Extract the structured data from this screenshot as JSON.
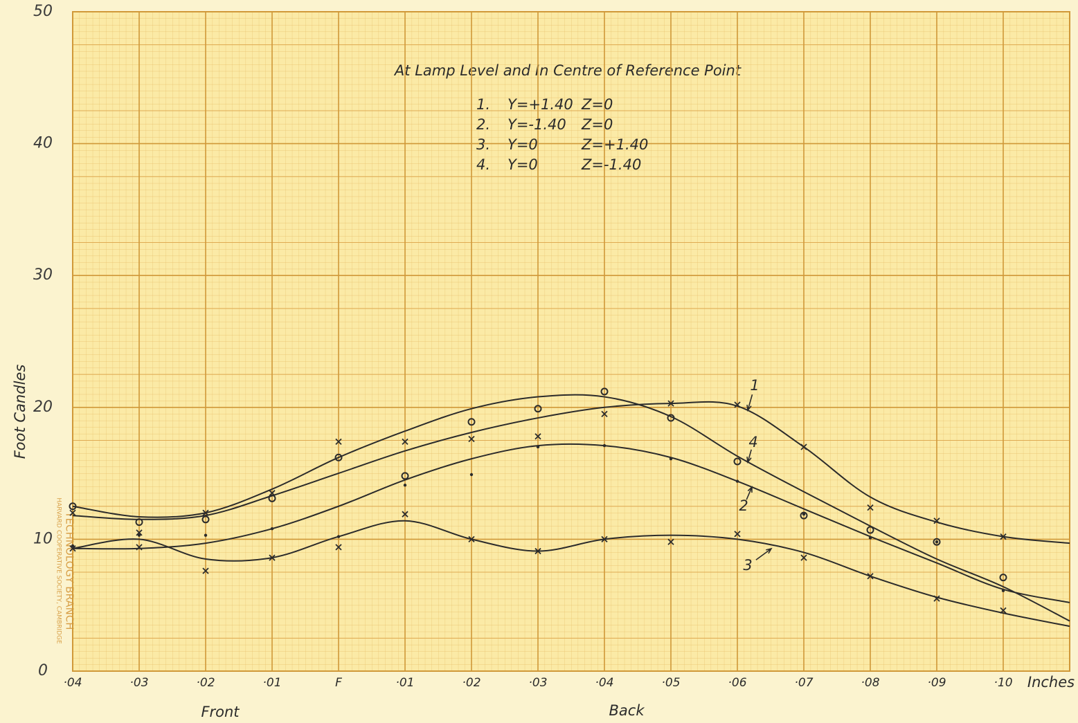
{
  "chart_data": {
    "type": "line",
    "title": "At Lamp Level and In Centre of Reference Point",
    "key": [
      [
        "1.",
        "Y=+1.40",
        "Z=0"
      ],
      [
        "2.",
        "Y=-1.40",
        "Z=0"
      ],
      [
        "3.",
        "Y=0",
        "Z=+1.40"
      ],
      [
        "4.",
        "Y=0",
        "Z=-1.40"
      ]
    ],
    "y_label": "Foot Candles",
    "x_label": "Inches",
    "x_side_labels": [
      "Front",
      "Back"
    ],
    "stamp": [
      "TECHNOLOGY BRANCH",
      "HARVARD COOPERATIVE SOCIETY, CAMBRIDGE"
    ],
    "x": [
      -0.04,
      -0.03,
      -0.02,
      -0.01,
      0,
      0.01,
      0.02,
      0.03,
      0.04,
      0.05,
      0.06,
      0.07,
      0.08,
      0.09,
      0.1,
      0.11
    ],
    "xlim": [
      -0.04,
      0.11
    ],
    "xticks": [
      {
        "value": -0.04,
        "label": "·04"
      },
      {
        "value": -0.03,
        "label": "·03"
      },
      {
        "value": -0.02,
        "label": "·02"
      },
      {
        "value": -0.01,
        "label": "·01"
      },
      {
        "value": 0,
        "label": "F"
      },
      {
        "value": 0.01,
        "label": "·01"
      },
      {
        "value": 0.02,
        "label": "·02"
      },
      {
        "value": 0.03,
        "label": "·03"
      },
      {
        "value": 0.04,
        "label": "·04"
      },
      {
        "value": 0.05,
        "label": "·05"
      },
      {
        "value": 0.06,
        "label": "·06"
      },
      {
        "value": 0.07,
        "label": "·07"
      },
      {
        "value": 0.08,
        "label": "·08"
      },
      {
        "value": 0.09,
        "label": "·09"
      },
      {
        "value": 0.1,
        "label": "·10"
      }
    ],
    "ylim": [
      0,
      50
    ],
    "yticks": [
      0,
      10,
      20,
      30,
      40,
      50
    ],
    "grid": true,
    "series": [
      {
        "name": "1",
        "color": "#2b2b2b",
        "marker": "cross",
        "values": [
          11.8,
          11.5,
          11.8,
          13.3,
          15.0,
          16.7,
          18.1,
          19.2,
          20.0,
          20.3,
          20.1,
          17.0,
          13.2,
          11.3,
          10.2,
          9.7
        ],
        "points": [
          12.0,
          10.5,
          12.0,
          13.5,
          17.4,
          17.4,
          17.6,
          17.8,
          19.5,
          20.3,
          20.2,
          17.0,
          12.4,
          11.4,
          10.2,
          null
        ]
      },
      {
        "name": "2",
        "color": "#2b2b2b",
        "marker": "dot",
        "values": [
          9.3,
          9.3,
          9.7,
          10.8,
          12.5,
          14.5,
          16.1,
          17.1,
          17.1,
          16.2,
          14.4,
          12.3,
          10.2,
          8.2,
          6.2,
          5.2
        ],
        "points": [
          9.5,
          10.3,
          10.3,
          10.8,
          10.2,
          14.1,
          14.9,
          17.0,
          17.1,
          16.1,
          14.4,
          11.9,
          10.1,
          9.8,
          6.1,
          null
        ]
      },
      {
        "name": "3",
        "color": "#2b2b2b",
        "marker": "cross",
        "values": [
          9.3,
          10.0,
          8.5,
          8.6,
          10.2,
          11.4,
          10.0,
          9.1,
          10.0,
          10.3,
          10.0,
          9.0,
          7.2,
          5.6,
          4.4,
          3.4
        ],
        "points": [
          9.3,
          9.4,
          7.6,
          8.6,
          9.4,
          11.9,
          10.0,
          9.1,
          10.0,
          9.8,
          10.4,
          8.6,
          7.2,
          5.5,
          4.6,
          null
        ]
      },
      {
        "name": "4",
        "color": "#2b2b2b",
        "marker": "circle",
        "values": [
          12.5,
          11.7,
          12.0,
          13.8,
          16.2,
          18.2,
          19.9,
          20.8,
          20.8,
          19.3,
          16.3,
          13.6,
          11.0,
          8.5,
          6.4,
          3.8
        ],
        "points": [
          12.5,
          11.3,
          11.5,
          13.1,
          16.2,
          14.8,
          18.9,
          19.9,
          21.2,
          19.2,
          15.9,
          11.8,
          10.7,
          9.8,
          7.1,
          null
        ]
      }
    ]
  }
}
